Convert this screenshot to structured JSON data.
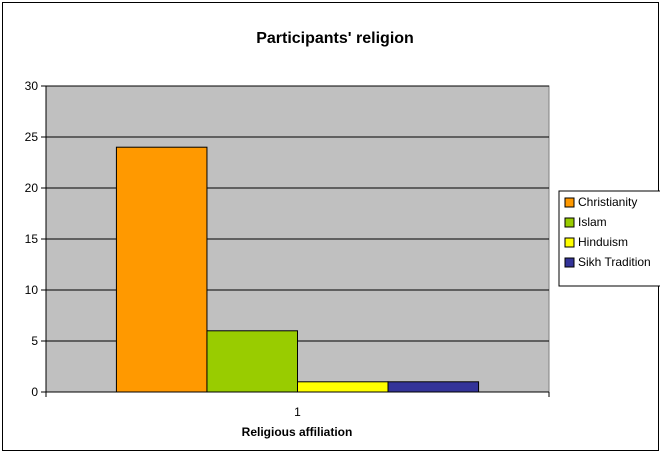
{
  "chart_data": {
    "type": "bar",
    "title": "Participants' religion",
    "xlabel": "Religious affiliation",
    "ylabel": "",
    "categories": [
      "1"
    ],
    "ylim": [
      0,
      30
    ],
    "yticks": [
      0,
      5,
      10,
      15,
      20,
      25,
      30
    ],
    "grid": true,
    "legend_position": "right",
    "plot_background": "#c0c0c0",
    "series": [
      {
        "name": "Christianity",
        "values": [
          24
        ],
        "color": "#ff9900"
      },
      {
        "name": "Islam",
        "values": [
          6
        ],
        "color": "#99cc00"
      },
      {
        "name": "Hinduism",
        "values": [
          1
        ],
        "color": "#ffff00"
      },
      {
        "name": "Sikh Tradition",
        "values": [
          1
        ],
        "color": "#333399"
      }
    ]
  }
}
